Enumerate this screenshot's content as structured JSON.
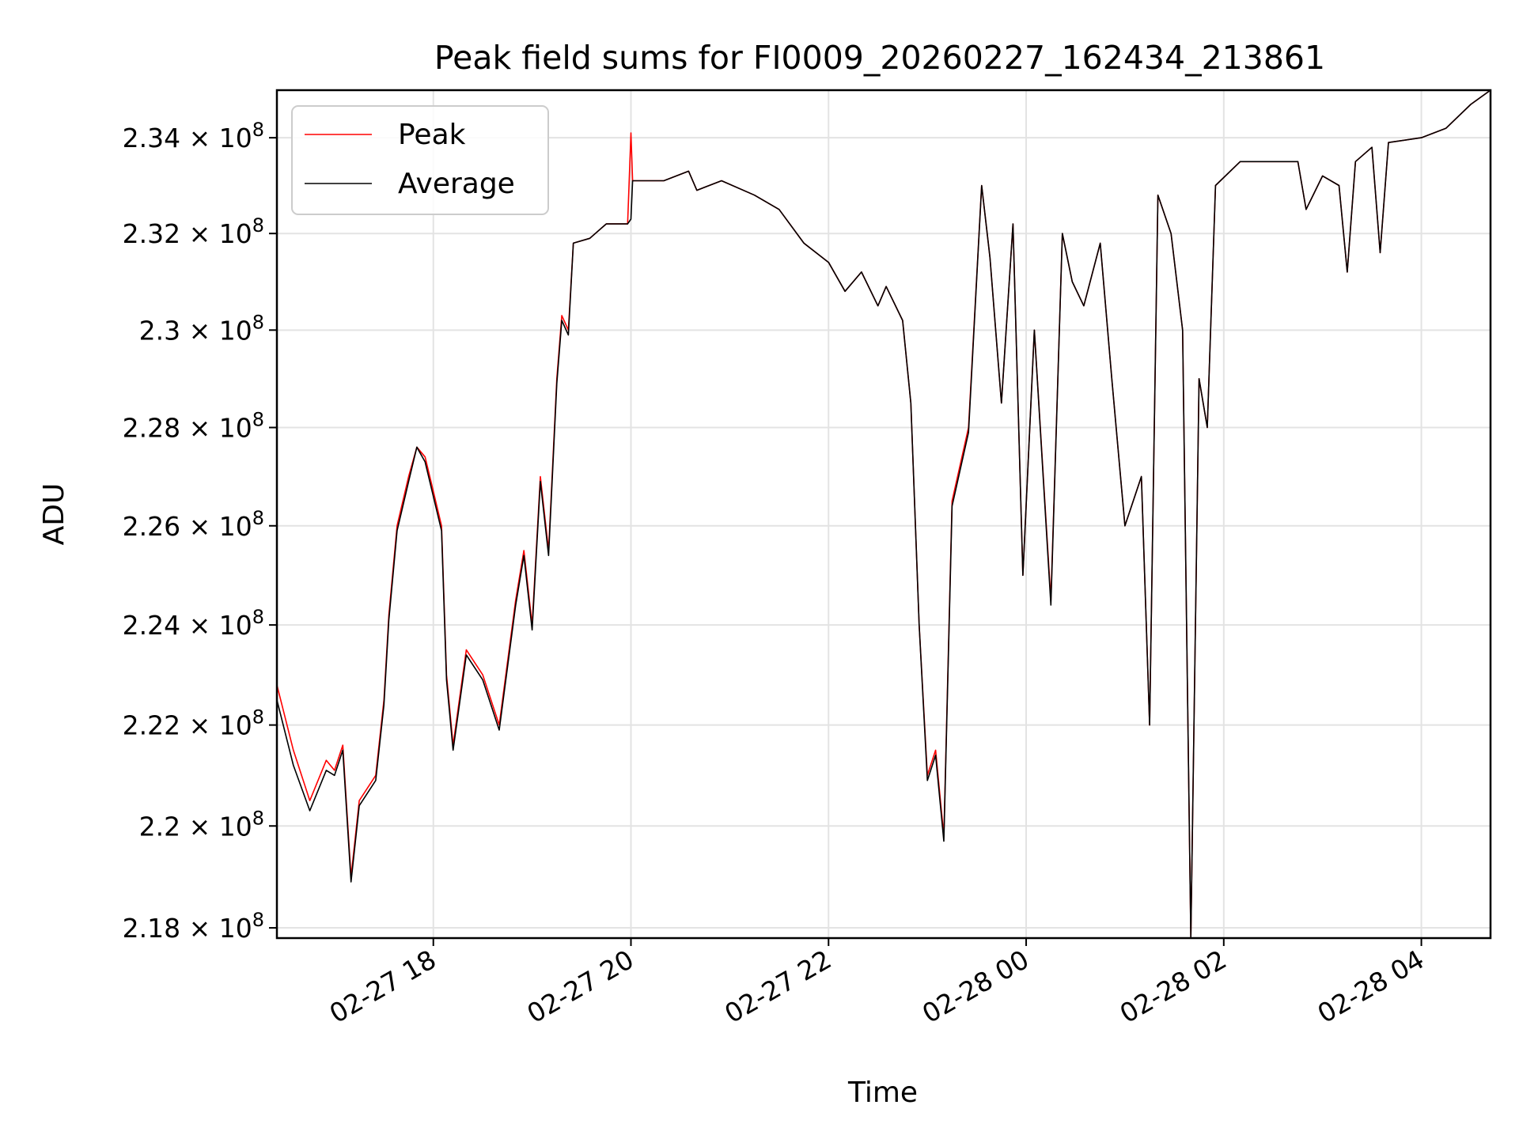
{
  "chart_data": {
    "type": "line",
    "title": "Peak field sums for FI0009_20260227_162434_213861",
    "xlabel": "Time",
    "ylabel": "ADU",
    "x_ticks": [
      "02-27 18",
      "02-27 20",
      "02-27 22",
      "02-28 00",
      "02-28 02",
      "02-28 04"
    ],
    "x_range": [
      "2026-02-27 16:25",
      "2026-02-28 04:42"
    ],
    "y_ticks": [
      "2.18",
      "2.2",
      "2.22",
      "2.24",
      "2.26",
      "2.28",
      "2.3",
      "2.32",
      "2.34"
    ],
    "y_tick_exponent": "8",
    "y_tick_multiplier": "× 10",
    "ylim": [
      217800000,
      235000000
    ],
    "yscale": "log",
    "grid": true,
    "legend_position": "upper-left",
    "series": [
      {
        "name": "Peak",
        "color": "#ff0000",
        "points": [
          [
            "2026-02-27 16:25",
            222800000
          ],
          [
            "2026-02-27 16:35",
            221500000
          ],
          [
            "2026-02-27 16:45",
            220500000
          ],
          [
            "2026-02-27 16:55",
            221300000
          ],
          [
            "2026-02-27 17:00",
            221100000
          ],
          [
            "2026-02-27 17:05",
            221600000
          ],
          [
            "2026-02-27 17:10",
            219000000
          ],
          [
            "2026-02-27 17:15",
            220500000
          ],
          [
            "2026-02-27 17:25",
            221000000
          ],
          [
            "2026-02-27 17:30",
            222500000
          ],
          [
            "2026-02-27 17:33",
            224200000
          ],
          [
            "2026-02-27 17:38",
            226000000
          ],
          [
            "2026-02-27 17:45",
            227000000
          ],
          [
            "2026-02-27 17:50",
            227600000
          ],
          [
            "2026-02-27 17:55",
            227400000
          ],
          [
            "2026-02-27 18:00",
            226700000
          ],
          [
            "2026-02-27 18:05",
            226000000
          ],
          [
            "2026-02-27 18:08",
            223000000
          ],
          [
            "2026-02-27 18:12",
            221600000
          ],
          [
            "2026-02-27 18:20",
            223500000
          ],
          [
            "2026-02-27 18:30",
            223000000
          ],
          [
            "2026-02-27 18:40",
            222000000
          ],
          [
            "2026-02-27 18:50",
            224500000
          ],
          [
            "2026-02-27 18:55",
            225500000
          ],
          [
            "2026-02-27 19:00",
            224000000
          ],
          [
            "2026-02-27 19:05",
            227000000
          ],
          [
            "2026-02-27 19:10",
            225500000
          ],
          [
            "2026-02-27 19:15",
            229000000
          ],
          [
            "2026-02-27 19:18",
            230300000
          ],
          [
            "2026-02-27 19:22",
            230000000
          ],
          [
            "2026-02-27 19:25",
            231800000
          ],
          [
            "2026-02-27 19:35",
            231900000
          ],
          [
            "2026-02-27 19:45",
            232200000
          ],
          [
            "2026-02-27 19:58",
            232200000
          ],
          [
            "2026-02-27 20:00",
            234100000
          ],
          [
            "2026-02-27 20:01",
            233100000
          ],
          [
            "2026-02-27 20:20",
            233100000
          ],
          [
            "2026-02-27 20:35",
            233300000
          ],
          [
            "2026-02-27 20:40",
            232900000
          ],
          [
            "2026-02-27 20:55",
            233100000
          ],
          [
            "2026-02-27 21:15",
            232800000
          ],
          [
            "2026-02-27 21:30",
            232500000
          ],
          [
            "2026-02-27 21:45",
            231800000
          ],
          [
            "2026-02-27 22:00",
            231400000
          ],
          [
            "2026-02-27 22:10",
            230800000
          ],
          [
            "2026-02-27 22:20",
            231200000
          ],
          [
            "2026-02-27 22:30",
            230500000
          ],
          [
            "2026-02-27 22:35",
            230900000
          ],
          [
            "2026-02-27 22:45",
            230200000
          ],
          [
            "2026-02-27 22:50",
            228500000
          ],
          [
            "2026-02-27 22:55",
            224000000
          ],
          [
            "2026-02-27 23:00",
            221000000
          ],
          [
            "2026-02-27 23:05",
            221500000
          ],
          [
            "2026-02-27 23:10",
            219800000
          ],
          [
            "2026-02-27 23:15",
            226500000
          ],
          [
            "2026-02-27 23:25",
            228000000
          ],
          [
            "2026-02-27 23:33",
            233000000
          ],
          [
            "2026-02-27 23:38",
            231500000
          ],
          [
            "2026-02-27 23:45",
            228500000
          ],
          [
            "2026-02-27 23:52",
            232200000
          ],
          [
            "2026-02-27 23:58",
            225000000
          ],
          [
            "2026-02-28 00:05",
            230000000
          ],
          [
            "2026-02-28 00:15",
            224500000
          ],
          [
            "2026-02-28 00:22",
            232000000
          ],
          [
            "2026-02-28 00:28",
            231000000
          ],
          [
            "2026-02-28 00:35",
            230500000
          ],
          [
            "2026-02-28 00:45",
            231800000
          ],
          [
            "2026-02-28 00:52",
            229000000
          ],
          [
            "2026-02-28 01:00",
            226000000
          ],
          [
            "2026-02-28 01:10",
            227000000
          ],
          [
            "2026-02-28 01:15",
            222000000
          ],
          [
            "2026-02-28 01:20",
            232800000
          ],
          [
            "2026-02-28 01:28",
            232000000
          ],
          [
            "2026-02-28 01:35",
            230000000
          ],
          [
            "2026-02-28 01:40",
            217800000
          ],
          [
            "2026-02-28 01:45",
            229000000
          ],
          [
            "2026-02-28 01:50",
            228000000
          ],
          [
            "2026-02-28 01:55",
            233000000
          ],
          [
            "2026-02-28 02:10",
            233500000
          ],
          [
            "2026-02-28 02:30",
            233500000
          ],
          [
            "2026-02-28 02:45",
            233500000
          ],
          [
            "2026-02-28 02:50",
            232500000
          ],
          [
            "2026-02-28 03:00",
            233200000
          ],
          [
            "2026-02-28 03:10",
            233000000
          ],
          [
            "2026-02-28 03:15",
            231200000
          ],
          [
            "2026-02-28 03:20",
            233500000
          ],
          [
            "2026-02-28 03:30",
            233800000
          ],
          [
            "2026-02-28 03:35",
            231600000
          ],
          [
            "2026-02-28 03:40",
            233900000
          ],
          [
            "2026-02-28 04:00",
            234000000
          ],
          [
            "2026-02-28 04:15",
            234200000
          ],
          [
            "2026-02-28 04:30",
            234700000
          ],
          [
            "2026-02-28 04:42",
            235000000
          ]
        ]
      },
      {
        "name": "Average",
        "color": "#000000",
        "points": [
          [
            "2026-02-27 16:25",
            222500000
          ],
          [
            "2026-02-27 16:35",
            221200000
          ],
          [
            "2026-02-27 16:45",
            220300000
          ],
          [
            "2026-02-27 16:55",
            221100000
          ],
          [
            "2026-02-27 17:00",
            221000000
          ],
          [
            "2026-02-27 17:05",
            221500000
          ],
          [
            "2026-02-27 17:10",
            218900000
          ],
          [
            "2026-02-27 17:15",
            220400000
          ],
          [
            "2026-02-27 17:25",
            220900000
          ],
          [
            "2026-02-27 17:30",
            222400000
          ],
          [
            "2026-02-27 17:33",
            224100000
          ],
          [
            "2026-02-27 17:38",
            225900000
          ],
          [
            "2026-02-27 17:45",
            226900000
          ],
          [
            "2026-02-27 17:50",
            227600000
          ],
          [
            "2026-02-27 17:55",
            227300000
          ],
          [
            "2026-02-27 18:00",
            226600000
          ],
          [
            "2026-02-27 18:05",
            225900000
          ],
          [
            "2026-02-27 18:08",
            222900000
          ],
          [
            "2026-02-27 18:12",
            221500000
          ],
          [
            "2026-02-27 18:20",
            223400000
          ],
          [
            "2026-02-27 18:30",
            222900000
          ],
          [
            "2026-02-27 18:40",
            221900000
          ],
          [
            "2026-02-27 18:50",
            224400000
          ],
          [
            "2026-02-27 18:55",
            225400000
          ],
          [
            "2026-02-27 19:00",
            223900000
          ],
          [
            "2026-02-27 19:05",
            226900000
          ],
          [
            "2026-02-27 19:10",
            225400000
          ],
          [
            "2026-02-27 19:15",
            228900000
          ],
          [
            "2026-02-27 19:18",
            230200000
          ],
          [
            "2026-02-27 19:22",
            229900000
          ],
          [
            "2026-02-27 19:25",
            231800000
          ],
          [
            "2026-02-27 19:35",
            231900000
          ],
          [
            "2026-02-27 19:45",
            232200000
          ],
          [
            "2026-02-27 19:58",
            232200000
          ],
          [
            "2026-02-27 20:00",
            232300000
          ],
          [
            "2026-02-27 20:01",
            233100000
          ],
          [
            "2026-02-27 20:20",
            233100000
          ],
          [
            "2026-02-27 20:35",
            233300000
          ],
          [
            "2026-02-27 20:40",
            232900000
          ],
          [
            "2026-02-27 20:55",
            233100000
          ],
          [
            "2026-02-27 21:15",
            232800000
          ],
          [
            "2026-02-27 21:30",
            232500000
          ],
          [
            "2026-02-27 21:45",
            231800000
          ],
          [
            "2026-02-27 22:00",
            231400000
          ],
          [
            "2026-02-27 22:10",
            230800000
          ],
          [
            "2026-02-27 22:20",
            231200000
          ],
          [
            "2026-02-27 22:30",
            230500000
          ],
          [
            "2026-02-27 22:35",
            230900000
          ],
          [
            "2026-02-27 22:45",
            230200000
          ],
          [
            "2026-02-27 22:50",
            228500000
          ],
          [
            "2026-02-27 22:55",
            224000000
          ],
          [
            "2026-02-27 23:00",
            220900000
          ],
          [
            "2026-02-27 23:05",
            221400000
          ],
          [
            "2026-02-27 23:10",
            219700000
          ],
          [
            "2026-02-27 23:15",
            226400000
          ],
          [
            "2026-02-27 23:25",
            227900000
          ],
          [
            "2026-02-27 23:33",
            233000000
          ],
          [
            "2026-02-27 23:38",
            231500000
          ],
          [
            "2026-02-27 23:45",
            228500000
          ],
          [
            "2026-02-27 23:52",
            232200000
          ],
          [
            "2026-02-27 23:58",
            225000000
          ],
          [
            "2026-02-28 00:05",
            230000000
          ],
          [
            "2026-02-28 00:15",
            224400000
          ],
          [
            "2026-02-28 00:22",
            232000000
          ],
          [
            "2026-02-28 00:28",
            231000000
          ],
          [
            "2026-02-28 00:35",
            230500000
          ],
          [
            "2026-02-28 00:45",
            231800000
          ],
          [
            "2026-02-28 00:52",
            229000000
          ],
          [
            "2026-02-28 01:00",
            226000000
          ],
          [
            "2026-02-28 01:10",
            227000000
          ],
          [
            "2026-02-28 01:15",
            222000000
          ],
          [
            "2026-02-28 01:20",
            232800000
          ],
          [
            "2026-02-28 01:28",
            232000000
          ],
          [
            "2026-02-28 01:35",
            230000000
          ],
          [
            "2026-02-28 01:40",
            217800000
          ],
          [
            "2026-02-28 01:45",
            229000000
          ],
          [
            "2026-02-28 01:50",
            228000000
          ],
          [
            "2026-02-28 01:55",
            233000000
          ],
          [
            "2026-02-28 02:10",
            233500000
          ],
          [
            "2026-02-28 02:30",
            233500000
          ],
          [
            "2026-02-28 02:45",
            233500000
          ],
          [
            "2026-02-28 02:50",
            232500000
          ],
          [
            "2026-02-28 03:00",
            233200000
          ],
          [
            "2026-02-28 03:10",
            233000000
          ],
          [
            "2026-02-28 03:15",
            231200000
          ],
          [
            "2026-02-28 03:20",
            233500000
          ],
          [
            "2026-02-28 03:30",
            233800000
          ],
          [
            "2026-02-28 03:35",
            231600000
          ],
          [
            "2026-02-28 03:40",
            233900000
          ],
          [
            "2026-02-28 04:00",
            234000000
          ],
          [
            "2026-02-28 04:15",
            234200000
          ],
          [
            "2026-02-28 04:30",
            234700000
          ],
          [
            "2026-02-28 04:42",
            235000000
          ]
        ]
      }
    ]
  }
}
